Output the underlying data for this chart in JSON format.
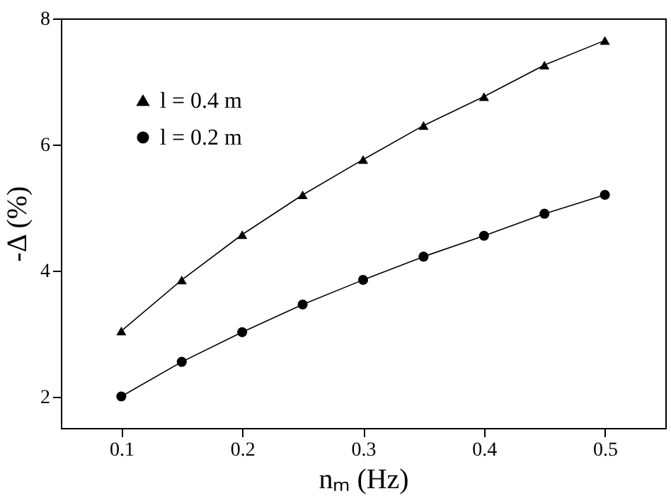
{
  "chart_data": {
    "type": "line",
    "xlabel": "nₘ (Hz)",
    "ylabel": "-Δ (%)",
    "x": [
      0.1,
      0.15,
      0.2,
      0.25,
      0.3,
      0.35,
      0.4,
      0.45,
      0.5
    ],
    "series": [
      {
        "name": "l = 0.4 m",
        "color": "#000000",
        "marker": "triangle",
        "values": [
          3.04,
          3.85,
          4.57,
          5.2,
          5.76,
          6.3,
          6.76,
          7.26,
          7.65
        ]
      },
      {
        "name": "l = 0.2 m",
        "color": "#000000",
        "marker": "circle",
        "values": [
          2.0,
          2.55,
          3.02,
          3.46,
          3.85,
          4.22,
          4.55,
          4.9,
          5.2
        ]
      }
    ],
    "xlim": [
      0.05,
      0.55
    ],
    "xticks": [
      0.1,
      0.2,
      0.3,
      0.4,
      0.5
    ],
    "ylim": [
      1.5,
      8
    ],
    "yticks": [
      2,
      4,
      6,
      8
    ],
    "grid": false,
    "legend": "top left",
    "line_style": "solid"
  }
}
